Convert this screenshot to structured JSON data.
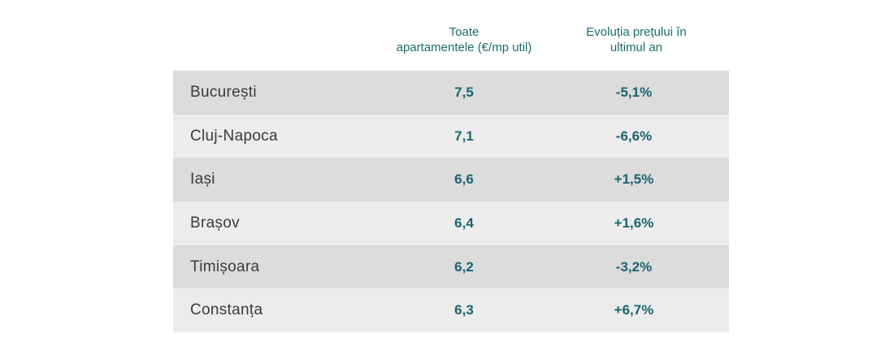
{
  "header": {
    "price_column": "Toate\napartamentele  (€/mp util)",
    "change_column": "Evoluția prețului în\nultimul an"
  },
  "rows": [
    {
      "city": "București",
      "price": "7,5",
      "change": "-5,1%"
    },
    {
      "city": "Cluj-Napoca",
      "price": "7,1",
      "change": "-6,6%"
    },
    {
      "city": "Iași",
      "price": "6,6",
      "change": "+1,5%"
    },
    {
      "city": "Brașov",
      "price": "6,4",
      "change": "+1,6%"
    },
    {
      "city": "Timișoara",
      "price": "6,2",
      "change": "-3,2%"
    },
    {
      "city": "Constanța",
      "price": "6,3",
      "change": "+6,7%"
    }
  ],
  "colors": {
    "accent": "#1a6470",
    "row_dark": "#dcdcdc",
    "row_light": "#ececec",
    "city_text": "#3a3a3a"
  },
  "chart_data": {
    "type": "table",
    "columns": [
      "Toate apartamentele  (€/mp util)",
      "Evoluția prețului în ultimul an"
    ],
    "categories": [
      "București",
      "Cluj-Napoca",
      "Iași",
      "Brașov",
      "Timișoara",
      "Constanța"
    ],
    "series": [
      {
        "name": "Toate apartamentele  (€/mp util)",
        "values": [
          7.5,
          7.1,
          6.6,
          6.4,
          6.2,
          6.3
        ]
      },
      {
        "name": "Evoluția prețului în ultimul an",
        "values": [
          -5.1,
          -6.6,
          1.5,
          1.6,
          -3.2,
          6.7
        ]
      }
    ]
  }
}
